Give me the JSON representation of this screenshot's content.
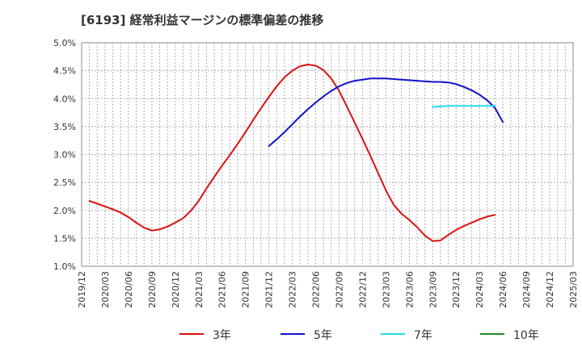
{
  "chart_data": {
    "type": "line",
    "title": "[6193]  経常利益マージンの標準偏差の推移",
    "xlabel": "",
    "ylabel": "",
    "ylim": [
      0.01,
      0.05
    ],
    "yticks": [
      "1.0%",
      "1.5%",
      "2.0%",
      "2.5%",
      "3.0%",
      "3.5%",
      "4.0%",
      "4.5%",
      "5.0%"
    ],
    "xticks": [
      "2019/12",
      "2020/03",
      "2020/06",
      "2020/09",
      "2020/12",
      "2021/03",
      "2021/06",
      "2021/09",
      "2021/12",
      "2022/03",
      "2022/06",
      "2022/09",
      "2022/12",
      "2023/03",
      "2023/06",
      "2023/09",
      "2023/12",
      "2024/03",
      "2024/06",
      "2024/09",
      "2024/12",
      "2025/03"
    ],
    "grid": true,
    "legend_position": "bottom",
    "series": [
      {
        "name": "3年",
        "color": "#dd1111",
        "start_index": 1,
        "values": [
          0.0217,
          0.0212,
          0.0207,
          0.0202,
          0.0196,
          0.0188,
          0.0178,
          0.0169,
          0.0164,
          0.0166,
          0.0171,
          0.0178,
          0.0186,
          0.0199,
          0.0217,
          0.0239,
          0.026,
          0.028,
          0.0299,
          0.0319,
          0.034,
          0.0362,
          0.0383,
          0.0403,
          0.0422,
          0.0438,
          0.045,
          0.0458,
          0.0461,
          0.0459,
          0.0451,
          0.0436,
          0.0414,
          0.0386,
          0.0357,
          0.0328,
          0.0298,
          0.0267,
          0.0236,
          0.021,
          0.0194,
          0.0183,
          0.017,
          0.0155,
          0.0145,
          0.0146,
          0.0156,
          0.0165,
          0.0172,
          0.0178,
          0.0184,
          0.0189,
          0.0192
        ]
      },
      {
        "name": "5年",
        "color": "#1111cc",
        "start_index": 24,
        "values": [
          0.0315,
          0.0327,
          0.034,
          0.0354,
          0.0368,
          0.0381,
          0.0393,
          0.0404,
          0.0414,
          0.0422,
          0.0428,
          0.0432,
          0.0434,
          0.0436,
          0.0436,
          0.0436,
          0.0435,
          0.0434,
          0.0433,
          0.0432,
          0.0431,
          0.043,
          0.043,
          0.0429,
          0.0426,
          0.0421,
          0.0415,
          0.0407,
          0.0397,
          0.0383,
          0.0358
        ]
      },
      {
        "name": "7年",
        "color": "#22ddee",
        "start_index": 45,
        "values": [
          0.0385,
          0.0386,
          0.0387,
          0.0387,
          0.0387,
          0.0387,
          0.0387,
          0.0387,
          0.0387
        ]
      },
      {
        "name": "10年",
        "color": "#228822",
        "start_index": 0,
        "values": []
      }
    ]
  }
}
